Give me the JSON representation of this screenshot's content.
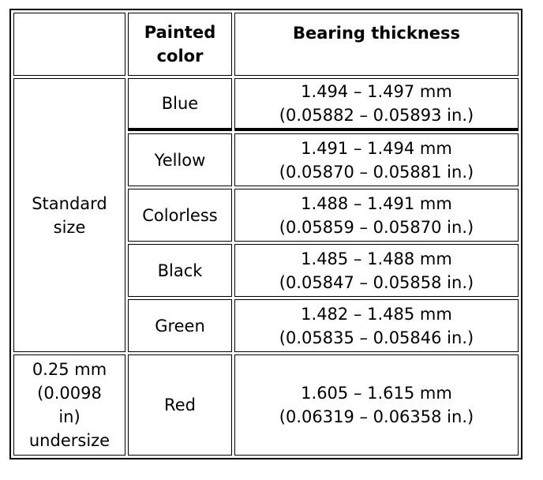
{
  "table": {
    "header": {
      "painted_color": [
        "Painted",
        "color"
      ],
      "bearing_thickness": "Bearing thickness"
    },
    "groups": [
      {
        "label": [
          "Standard",
          "size"
        ],
        "rows": [
          {
            "color": "Blue",
            "thickness": [
              "1.494 – 1.497 mm",
              "(0.05882 – 0.05893 in.)"
            ]
          },
          {
            "color": "Yellow",
            "thickness": [
              "1.491 – 1.494 mm",
              "(0.05870 – 0.05881 in.)"
            ]
          },
          {
            "color": "Colorless",
            "thickness": [
              "1.488 – 1.491 mm",
              "(0.05859 – 0.05870 in.)"
            ]
          },
          {
            "color": "Black",
            "thickness": [
              "1.485 – 1.488 mm",
              "(0.05847 – 0.05858 in.)"
            ]
          },
          {
            "color": "Green",
            "thickness": [
              "1.482 – 1.485 mm",
              "(0.05835 – 0.05846 in.)"
            ]
          }
        ]
      },
      {
        "label": [
          "0.25 mm",
          "(0.0098",
          "in)",
          "undersize"
        ],
        "rows": [
          {
            "color": "Red",
            "thickness": [
              "1.605 – 1.615 mm",
              "(0.06319 – 0.06358 in.)"
            ]
          }
        ]
      }
    ]
  }
}
